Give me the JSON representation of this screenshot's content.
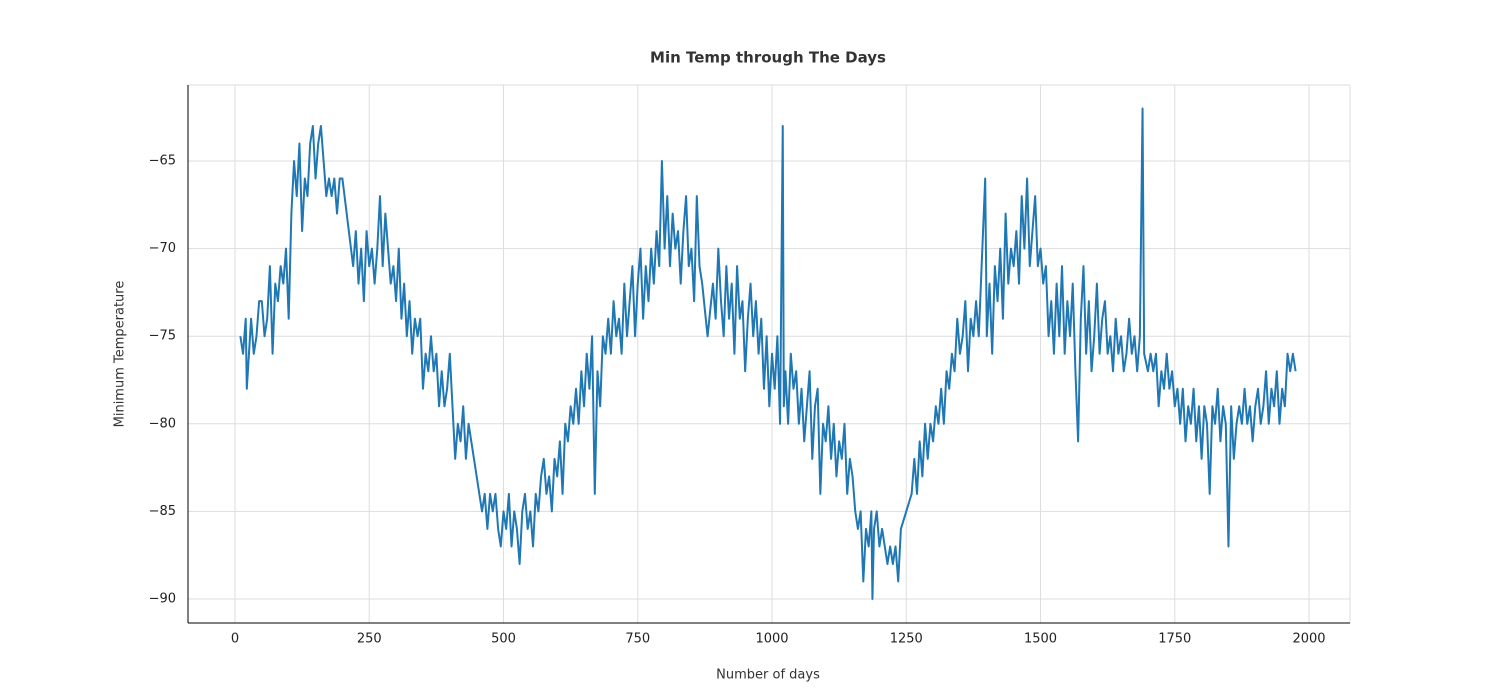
{
  "chart_data": {
    "type": "line",
    "title": "Min Temp through The Days",
    "x_label": "Number of days",
    "y_label": "Minimum Temperature",
    "color": "#1f77b4",
    "grid": true,
    "xlim": [
      -87.5,
      2076.3
    ],
    "ylim": [
      -91.37,
      -60.66
    ],
    "xticks": [
      0,
      250,
      500,
      750,
      1000,
      1250,
      1500,
      1750,
      2000
    ],
    "yticks": [
      {
        "value": -90,
        "label": "−90"
      },
      {
        "value": -85,
        "label": "−85"
      },
      {
        "value": -80,
        "label": "−80"
      },
      {
        "value": -75,
        "label": "−75"
      },
      {
        "value": -70,
        "label": "−70"
      },
      {
        "value": -65,
        "label": "−65"
      }
    ],
    "x": [
      10,
      15,
      20,
      22,
      30,
      35,
      40,
      45,
      50,
      55,
      60,
      65,
      70,
      75,
      80,
      85,
      90,
      95,
      100,
      105,
      110,
      115,
      120,
      125,
      130,
      135,
      140,
      145,
      150,
      155,
      160,
      165,
      170,
      175,
      180,
      185,
      190,
      195,
      200,
      220,
      225,
      230,
      235,
      240,
      245,
      250,
      255,
      260,
      265,
      270,
      275,
      280,
      285,
      290,
      295,
      300,
      305,
      310,
      315,
      320,
      325,
      330,
      335,
      340,
      345,
      350,
      355,
      360,
      365,
      370,
      375,
      380,
      385,
      390,
      395,
      400,
      405,
      410,
      415,
      420,
      425,
      430,
      435,
      440,
      450,
      460,
      465,
      470,
      475,
      480,
      485,
      490,
      495,
      500,
      505,
      510,
      515,
      520,
      525,
      530,
      535,
      540,
      545,
      550,
      555,
      560,
      565,
      570,
      575,
      580,
      585,
      590,
      595,
      600,
      605,
      610,
      615,
      620,
      625,
      630,
      635,
      640,
      645,
      650,
      655,
      660,
      665,
      670,
      675,
      680,
      685,
      690,
      695,
      700,
      705,
      710,
      715,
      720,
      725,
      730,
      735,
      740,
      745,
      750,
      755,
      760,
      765,
      770,
      775,
      780,
      785,
      790,
      795,
      800,
      805,
      810,
      815,
      820,
      825,
      830,
      835,
      840,
      845,
      850,
      855,
      860,
      865,
      870,
      880,
      890,
      895,
      900,
      905,
      910,
      915,
      920,
      925,
      930,
      935,
      940,
      945,
      950,
      955,
      960,
      965,
      970,
      975,
      980,
      985,
      990,
      995,
      1000,
      1005,
      1010,
      1015,
      1020,
      1022,
      1025,
      1030,
      1035,
      1040,
      1045,
      1050,
      1055,
      1060,
      1065,
      1070,
      1075,
      1080,
      1085,
      1090,
      1095,
      1100,
      1105,
      1110,
      1115,
      1120,
      1125,
      1130,
      1135,
      1140,
      1145,
      1150,
      1155,
      1160,
      1165,
      1170,
      1175,
      1180,
      1185,
      1187,
      1190,
      1195,
      1200,
      1205,
      1210,
      1215,
      1220,
      1225,
      1230,
      1235,
      1240,
      1250,
      1260,
      1265,
      1270,
      1275,
      1280,
      1285,
      1290,
      1295,
      1300,
      1305,
      1310,
      1315,
      1320,
      1325,
      1330,
      1335,
      1340,
      1345,
      1350,
      1355,
      1360,
      1365,
      1370,
      1375,
      1380,
      1385,
      1397,
      1400,
      1405,
      1410,
      1415,
      1420,
      1425,
      1430,
      1435,
      1440,
      1445,
      1450,
      1455,
      1460,
      1465,
      1470,
      1475,
      1480,
      1485,
      1490,
      1495,
      1500,
      1505,
      1510,
      1515,
      1520,
      1525,
      1530,
      1535,
      1540,
      1545,
      1550,
      1555,
      1560,
      1565,
      1570,
      1575,
      1580,
      1585,
      1590,
      1595,
      1600,
      1605,
      1610,
      1615,
      1620,
      1625,
      1630,
      1635,
      1640,
      1645,
      1650,
      1655,
      1660,
      1665,
      1670,
      1675,
      1680,
      1685,
      1690,
      1693,
      1700,
      1705,
      1710,
      1715,
      1720,
      1725,
      1730,
      1735,
      1740,
      1745,
      1750,
      1755,
      1760,
      1765,
      1770,
      1775,
      1780,
      1785,
      1790,
      1795,
      1800,
      1805,
      1810,
      1815,
      1820,
      1825,
      1830,
      1835,
      1840,
      1845,
      1850,
      1855,
      1860,
      1865,
      1870,
      1875,
      1880,
      1885,
      1890,
      1895,
      1900,
      1905,
      1910,
      1915,
      1920,
      1925,
      1930,
      1935,
      1940,
      1945,
      1950,
      1955,
      1960,
      1965,
      1970,
      1975
    ],
    "values": [
      -75,
      -76,
      -74,
      -78,
      -74,
      -76,
      -75,
      -73,
      -73,
      -75,
      -74,
      -71,
      -76,
      -72,
      -73,
      -71,
      -72,
      -70,
      -74,
      -68,
      -65,
      -67,
      -64,
      -69,
      -66,
      -67,
      -64,
      -63,
      -66,
      -64,
      -63,
      -65,
      -67,
      -66,
      -67,
      -66,
      -68,
      -66,
      -66,
      -71,
      -69,
      -72,
      -70,
      -73,
      -69,
      -71,
      -70,
      -72,
      -70,
      -67,
      -71,
      -68,
      -70,
      -72,
      -71,
      -73,
      -70,
      -74,
      -72,
      -75,
      -73,
      -76,
      -74,
      -75,
      -74,
      -78,
      -76,
      -77,
      -75,
      -77,
      -76,
      -79,
      -77,
      -79,
      -78,
      -76,
      -79,
      -82,
      -80,
      -81,
      -79,
      -82,
      -80,
      -81,
      -83,
      -85,
      -84,
      -86,
      -84,
      -85,
      -84,
      -86,
      -87,
      -85,
      -86,
      -84,
      -87,
      -85,
      -86,
      -88,
      -85,
      -84,
      -86,
      -85,
      -87,
      -84,
      -85,
      -83,
      -82,
      -84,
      -83,
      -85,
      -82,
      -83,
      -81,
      -84,
      -80,
      -81,
      -79,
      -80,
      -78,
      -80,
      -77,
      -79,
      -76,
      -78,
      -75,
      -84,
      -77,
      -79,
      -75,
      -76,
      -74,
      -76,
      -73,
      -75,
      -74,
      -76,
      -72,
      -75,
      -73,
      -71,
      -75,
      -72,
      -70,
      -74,
      -71,
      -73,
      -70,
      -72,
      -69,
      -71,
      -65,
      -70,
      -67,
      -71,
      -68,
      -70,
      -69,
      -72,
      -69,
      -67,
      -71,
      -70,
      -73,
      -67,
      -71,
      -72,
      -75,
      -72,
      -74,
      -70,
      -73,
      -75,
      -71,
      -74,
      -72,
      -76,
      -71,
      -74,
      -73,
      -77,
      -74,
      -72,
      -75,
      -73,
      -76,
      -74,
      -78,
      -75,
      -79,
      -76,
      -78,
      -75,
      -80,
      -63,
      -79,
      -77,
      -80,
      -76,
      -78,
      -77,
      -80,
      -78,
      -81,
      -79,
      -77,
      -82,
      -79,
      -78,
      -84,
      -80,
      -81,
      -79,
      -82,
      -80,
      -83,
      -81,
      -82,
      -80,
      -84,
      -82,
      -83,
      -85,
      -86,
      -85,
      -89,
      -86,
      -87,
      -85,
      -90,
      -86,
      -85,
      -87,
      -86,
      -87,
      -88,
      -87,
      -88,
      -87,
      -89,
      -86,
      -85,
      -84,
      -82,
      -84,
      -81,
      -83,
      -80,
      -82,
      -80,
      -81,
      -79,
      -80,
      -78,
      -80,
      -77,
      -78,
      -76,
      -77,
      -74,
      -76,
      -75,
      -73,
      -77,
      -74,
      -75,
      -73,
      -75,
      -66,
      -75,
      -72,
      -76,
      -71,
      -73,
      -70,
      -74,
      -68,
      -72,
      -70,
      -71,
      -69,
      -72,
      -67,
      -70,
      -66,
      -71,
      -69,
      -67,
      -71,
      -70,
      -72,
      -71,
      -75,
      -73,
      -76,
      -72,
      -75,
      -71,
      -76,
      -73,
      -75,
      -72,
      -77,
      -81,
      -74,
      -71,
      -76,
      -73,
      -77,
      -75,
      -72,
      -76,
      -74,
      -73,
      -76,
      -75,
      -77,
      -74,
      -76,
      -75,
      -77,
      -76,
      -74,
      -76,
      -75,
      -77,
      -75,
      -62,
      -76,
      -77,
      -76,
      -77,
      -76,
      -79,
      -77,
      -78,
      -76,
      -78,
      -77,
      -79,
      -78,
      -80,
      -78,
      -81,
      -79,
      -80,
      -78,
      -81,
      -79,
      -82,
      -79,
      -80,
      -84,
      -79,
      -80,
      -78,
      -81,
      -79,
      -80,
      -87,
      -79,
      -82,
      -80,
      -79,
      -80,
      -78,
      -80,
      -79,
      -81,
      -79,
      -78,
      -80,
      -79,
      -77,
      -80,
      -78,
      -79,
      -77,
      -80,
      -78,
      -79,
      -76,
      -77,
      -76,
      -77
    ]
  }
}
